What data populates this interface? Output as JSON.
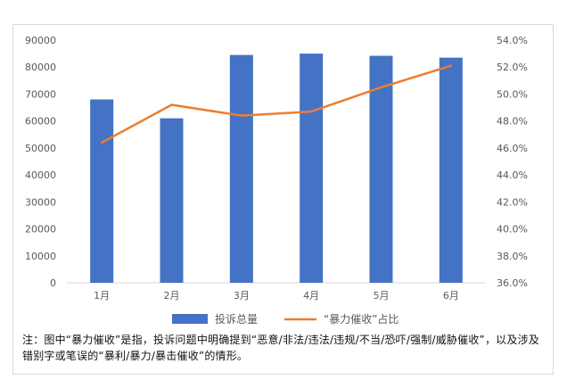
{
  "chart_data": {
    "type": "bar+line",
    "categories": [
      "1月",
      "2月",
      "3月",
      "4月",
      "5月",
      "6月"
    ],
    "series": [
      {
        "name": "投诉总量",
        "type": "bar",
        "axis": "left",
        "color": "#4472C4",
        "values": [
          68000,
          61000,
          84500,
          85000,
          84200,
          83500
        ]
      },
      {
        "name": "“暴力催收”占比",
        "type": "line",
        "axis": "right",
        "color": "#ED7D31",
        "values": [
          46.4,
          49.2,
          48.4,
          48.7,
          50.5,
          52.1
        ]
      }
    ],
    "y_left": {
      "min": 0,
      "max": 90000,
      "ticks": [
        "0",
        "10000",
        "20000",
        "30000",
        "40000",
        "50000",
        "60000",
        "70000",
        "80000",
        "90000"
      ]
    },
    "y_right": {
      "min": 36,
      "max": 54,
      "ticks": [
        "36.0%",
        "38.0%",
        "40.0%",
        "42.0%",
        "44.0%",
        "46.0%",
        "48.0%",
        "50.0%",
        "52.0%",
        "54.0%"
      ]
    },
    "legend": {
      "position": "bottom"
    },
    "grid": false
  },
  "note": "注：图中“暴力催收”是指，投诉问题中明确提到“恶意/非法/违法/违规/不当/恐吓/强制/威胁催收”，以及涉及错别字或笔误的“暴利/暴力/暴击催收”的情形。"
}
